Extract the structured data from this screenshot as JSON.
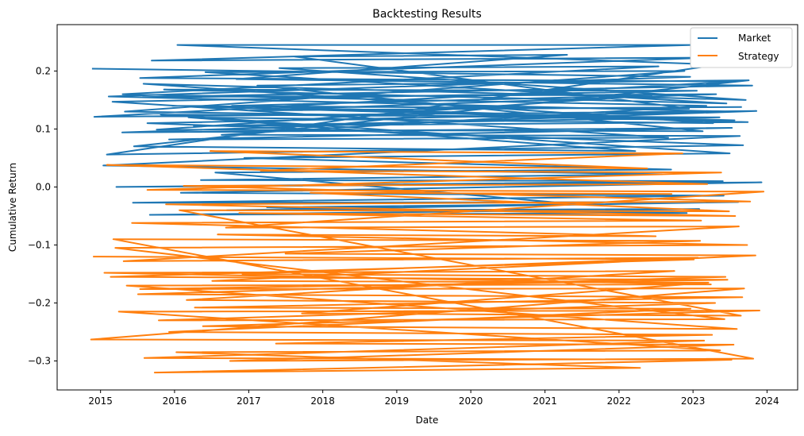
{
  "chart_data": {
    "type": "line",
    "title": "Backtesting Results",
    "xlabel": "Date",
    "ylabel": "Cumulative Return",
    "x_tick_labels": [
      "2015",
      "2016",
      "2017",
      "2018",
      "2019",
      "2020",
      "2021",
      "2022",
      "2023",
      "2024"
    ],
    "y_tick_labels": [
      "−0.3",
      "−0.2",
      "−0.1",
      "0.0",
      "0.1",
      "0.2"
    ],
    "y_ticks": [
      -0.3,
      -0.2,
      -0.1,
      0.0,
      0.1,
      0.2
    ],
    "xlim": [
      "2014-06-01",
      "2024-05-31"
    ],
    "ylim": [
      -0.35,
      0.28
    ],
    "grid": false,
    "legend_position": "top-right",
    "colors": {
      "market": "#1f77b4",
      "strategy": "#ff7f0e"
    },
    "series": [
      {
        "name": "Market",
        "color": "#1f77b4",
        "points": [
          [
            "2014-11-20",
            0.204
          ],
          [
            "2022-12-18",
            0.19
          ],
          [
            "2015-02-10",
            0.156
          ],
          [
            "2023-06-25",
            0.13
          ],
          [
            "2015-08-20",
            0.11
          ],
          [
            "2023-09-05",
            0.072
          ],
          [
            "2015-02-01",
            0.056
          ],
          [
            "2023-05-05",
            0.211
          ],
          [
            "2016-01-15",
            0.245
          ],
          [
            "2022-12-30",
            0.245
          ],
          [
            "2015-09-10",
            0.218
          ],
          [
            "2023-03-25",
            0.223
          ],
          [
            "2015-07-15",
            0.188
          ],
          [
            "2023-08-02",
            0.182
          ],
          [
            "2014-12-01",
            0.121
          ],
          [
            "2023-11-10",
            0.131
          ],
          [
            "2015-04-18",
            0.094
          ],
          [
            "2023-07-12",
            0.102
          ],
          [
            "2015-12-05",
            0.082
          ],
          [
            "2022-09-01",
            0.085
          ],
          [
            "2015-03-01",
            0.147
          ],
          [
            "2023-01-20",
            0.166
          ],
          [
            "2015-11-10",
            0.168
          ],
          [
            "2023-06-15",
            0.144
          ],
          [
            "2016-06-01",
            0.198
          ],
          [
            "2022-11-20",
            0.2
          ],
          [
            "2015-05-01",
            0.13
          ],
          [
            "2023-07-25",
            0.115
          ],
          [
            "2016-10-10",
            0.14
          ],
          [
            "2022-06-10",
            0.158
          ],
          [
            "2015-10-05",
            0.099
          ],
          [
            "2023-02-18",
            0.096
          ],
          [
            "2017-02-12",
            0.175
          ],
          [
            "2023-10-03",
            0.184
          ],
          [
            "2015-06-15",
            0.07
          ],
          [
            "2022-03-22",
            0.062
          ],
          [
            "2016-03-10",
            0.12
          ],
          [
            "2023-04-10",
            0.11
          ],
          [
            "2015-08-01",
            0.178
          ],
          [
            "2023-09-18",
            0.15
          ],
          [
            "2017-06-01",
            0.205
          ],
          [
            "2022-07-15",
            0.208
          ],
          [
            "2015-04-20",
            0.16
          ],
          [
            "2023-03-08",
            0.14
          ],
          [
            "2016-08-20",
            0.09
          ],
          [
            "2023-08-20",
            0.088
          ],
          [
            "2015-01-15",
            0.037
          ],
          [
            "2022-08-01",
            0.022
          ],
          [
            "2016-05-10",
            0.012
          ],
          [
            "2023-05-28",
            0.01
          ],
          [
            "2015-03-20",
            0.0
          ],
          [
            "2023-12-05",
            0.008
          ],
          [
            "2016-02-01",
            -0.01
          ],
          [
            "2023-06-01",
            -0.015
          ],
          [
            "2015-06-10",
            -0.027
          ],
          [
            "2023-08-12",
            -0.026
          ],
          [
            "2016-09-15",
            -0.04
          ],
          [
            "2023-02-01",
            -0.038
          ],
          [
            "2015-09-01",
            -0.048
          ],
          [
            "2022-12-01",
            -0.045
          ],
          [
            "2017-04-01",
            -0.035
          ],
          [
            "2021-06-10",
            -0.03
          ],
          [
            "2016-07-20",
            0.025
          ],
          [
            "2022-09-15",
            0.03
          ],
          [
            "2016-12-10",
            0.05
          ],
          [
            "2023-07-01",
            0.058
          ],
          [
            "2015-10-25",
            0.125
          ],
          [
            "2023-05-12",
            0.12
          ],
          [
            "2016-04-05",
            0.105
          ],
          [
            "2023-09-28",
            0.112
          ],
          [
            "2015-12-20",
            0.14
          ],
          [
            "2022-12-12",
            0.135
          ],
          [
            "2017-08-15",
            0.225
          ],
          [
            "2021-04-20",
            0.228
          ],
          [
            "2016-11-01",
            0.186
          ],
          [
            "2023-10-20",
            0.175
          ],
          [
            "2015-07-28",
            0.155
          ],
          [
            "2023-04-25",
            0.16
          ],
          [
            "2017-01-05",
            0.132
          ],
          [
            "2023-08-30",
            0.138
          ]
        ]
      },
      {
        "name": "Strategy",
        "color": "#ff7f0e",
        "points": [
          [
            "2014-11-25",
            -0.12
          ],
          [
            "2023-01-05",
            -0.125
          ],
          [
            "2015-02-20",
            -0.155
          ],
          [
            "2023-06-20",
            -0.16
          ],
          [
            "2015-07-15",
            -0.176
          ],
          [
            "2023-09-10",
            -0.175
          ],
          [
            "2014-11-15",
            -0.263
          ],
          [
            "2023-02-25",
            -0.265
          ],
          [
            "2015-08-05",
            -0.295
          ],
          [
            "2023-07-10",
            -0.298
          ],
          [
            "2015-09-25",
            -0.32
          ],
          [
            "2022-04-15",
            -0.312
          ],
          [
            "2016-01-10",
            -0.285
          ],
          [
            "2023-05-15",
            -0.282
          ],
          [
            "2015-04-01",
            -0.215
          ],
          [
            "2023-11-25",
            -0.213
          ],
          [
            "2016-05-20",
            -0.24
          ],
          [
            "2023-08-05",
            -0.245
          ],
          [
            "2015-05-10",
            -0.17
          ],
          [
            "2023-03-30",
            -0.168
          ],
          [
            "2015-01-20",
            -0.148
          ],
          [
            "2022-10-01",
            -0.145
          ],
          [
            "2016-03-01",
            -0.195
          ],
          [
            "2023-04-20",
            -0.2
          ],
          [
            "2015-10-15",
            -0.23
          ],
          [
            "2023-06-05",
            -0.228
          ],
          [
            "2015-03-15",
            -0.105
          ],
          [
            "2023-09-25",
            -0.1
          ],
          [
            "2016-08-01",
            -0.082
          ],
          [
            "2022-07-01",
            -0.085
          ],
          [
            "2015-06-05",
            -0.062
          ],
          [
            "2023-02-10",
            -0.058
          ],
          [
            "2016-11-15",
            -0.045
          ],
          [
            "2023-07-28",
            -0.05
          ],
          [
            "2015-11-20",
            -0.03
          ],
          [
            "2023-10-10",
            -0.025
          ],
          [
            "2016-02-15",
            0.002
          ],
          [
            "2023-03-12",
            0.005
          ],
          [
            "2015-02-01",
            0.038
          ],
          [
            "2022-05-20",
            0.032
          ],
          [
            "2016-06-25",
            0.062
          ],
          [
            "2022-11-10",
            0.058
          ],
          [
            "2017-03-01",
            0.028
          ],
          [
            "2023-05-20",
            0.025
          ],
          [
            "2015-08-20",
            -0.005
          ],
          [
            "2023-12-15",
            -0.008
          ],
          [
            "2016-09-10",
            -0.07
          ],
          [
            "2023-08-15",
            -0.068
          ],
          [
            "2015-04-25",
            -0.128
          ],
          [
            "2023-01-25",
            -0.122
          ],
          [
            "2016-12-01",
            -0.15
          ],
          [
            "2023-06-10",
            -0.155
          ],
          [
            "2015-07-05",
            -0.185
          ],
          [
            "2023-09-01",
            -0.19
          ],
          [
            "2016-04-10",
            -0.208
          ],
          [
            "2022-12-20",
            -0.21
          ],
          [
            "2015-12-05",
            -0.25
          ],
          [
            "2023-04-05",
            -0.255
          ],
          [
            "2017-05-15",
            -0.27
          ],
          [
            "2023-07-20",
            -0.272
          ],
          [
            "2016-10-01",
            -0.3
          ],
          [
            "2023-10-25",
            -0.296
          ],
          [
            "2015-03-05",
            -0.09
          ],
          [
            "2023-02-05",
            -0.093
          ],
          [
            "2017-07-01",
            -0.115
          ],
          [
            "2023-11-05",
            -0.118
          ],
          [
            "2016-07-05",
            -0.162
          ],
          [
            "2023-03-18",
            -0.165
          ],
          [
            "2017-09-20",
            -0.218
          ],
          [
            "2023-08-25",
            -0.222
          ],
          [
            "2016-01-25",
            -0.04
          ],
          [
            "2023-06-28",
            -0.042
          ],
          [
            "2017-11-01",
            -0.01
          ],
          [
            "2022-09-20",
            -0.012
          ]
        ]
      }
    ]
  }
}
